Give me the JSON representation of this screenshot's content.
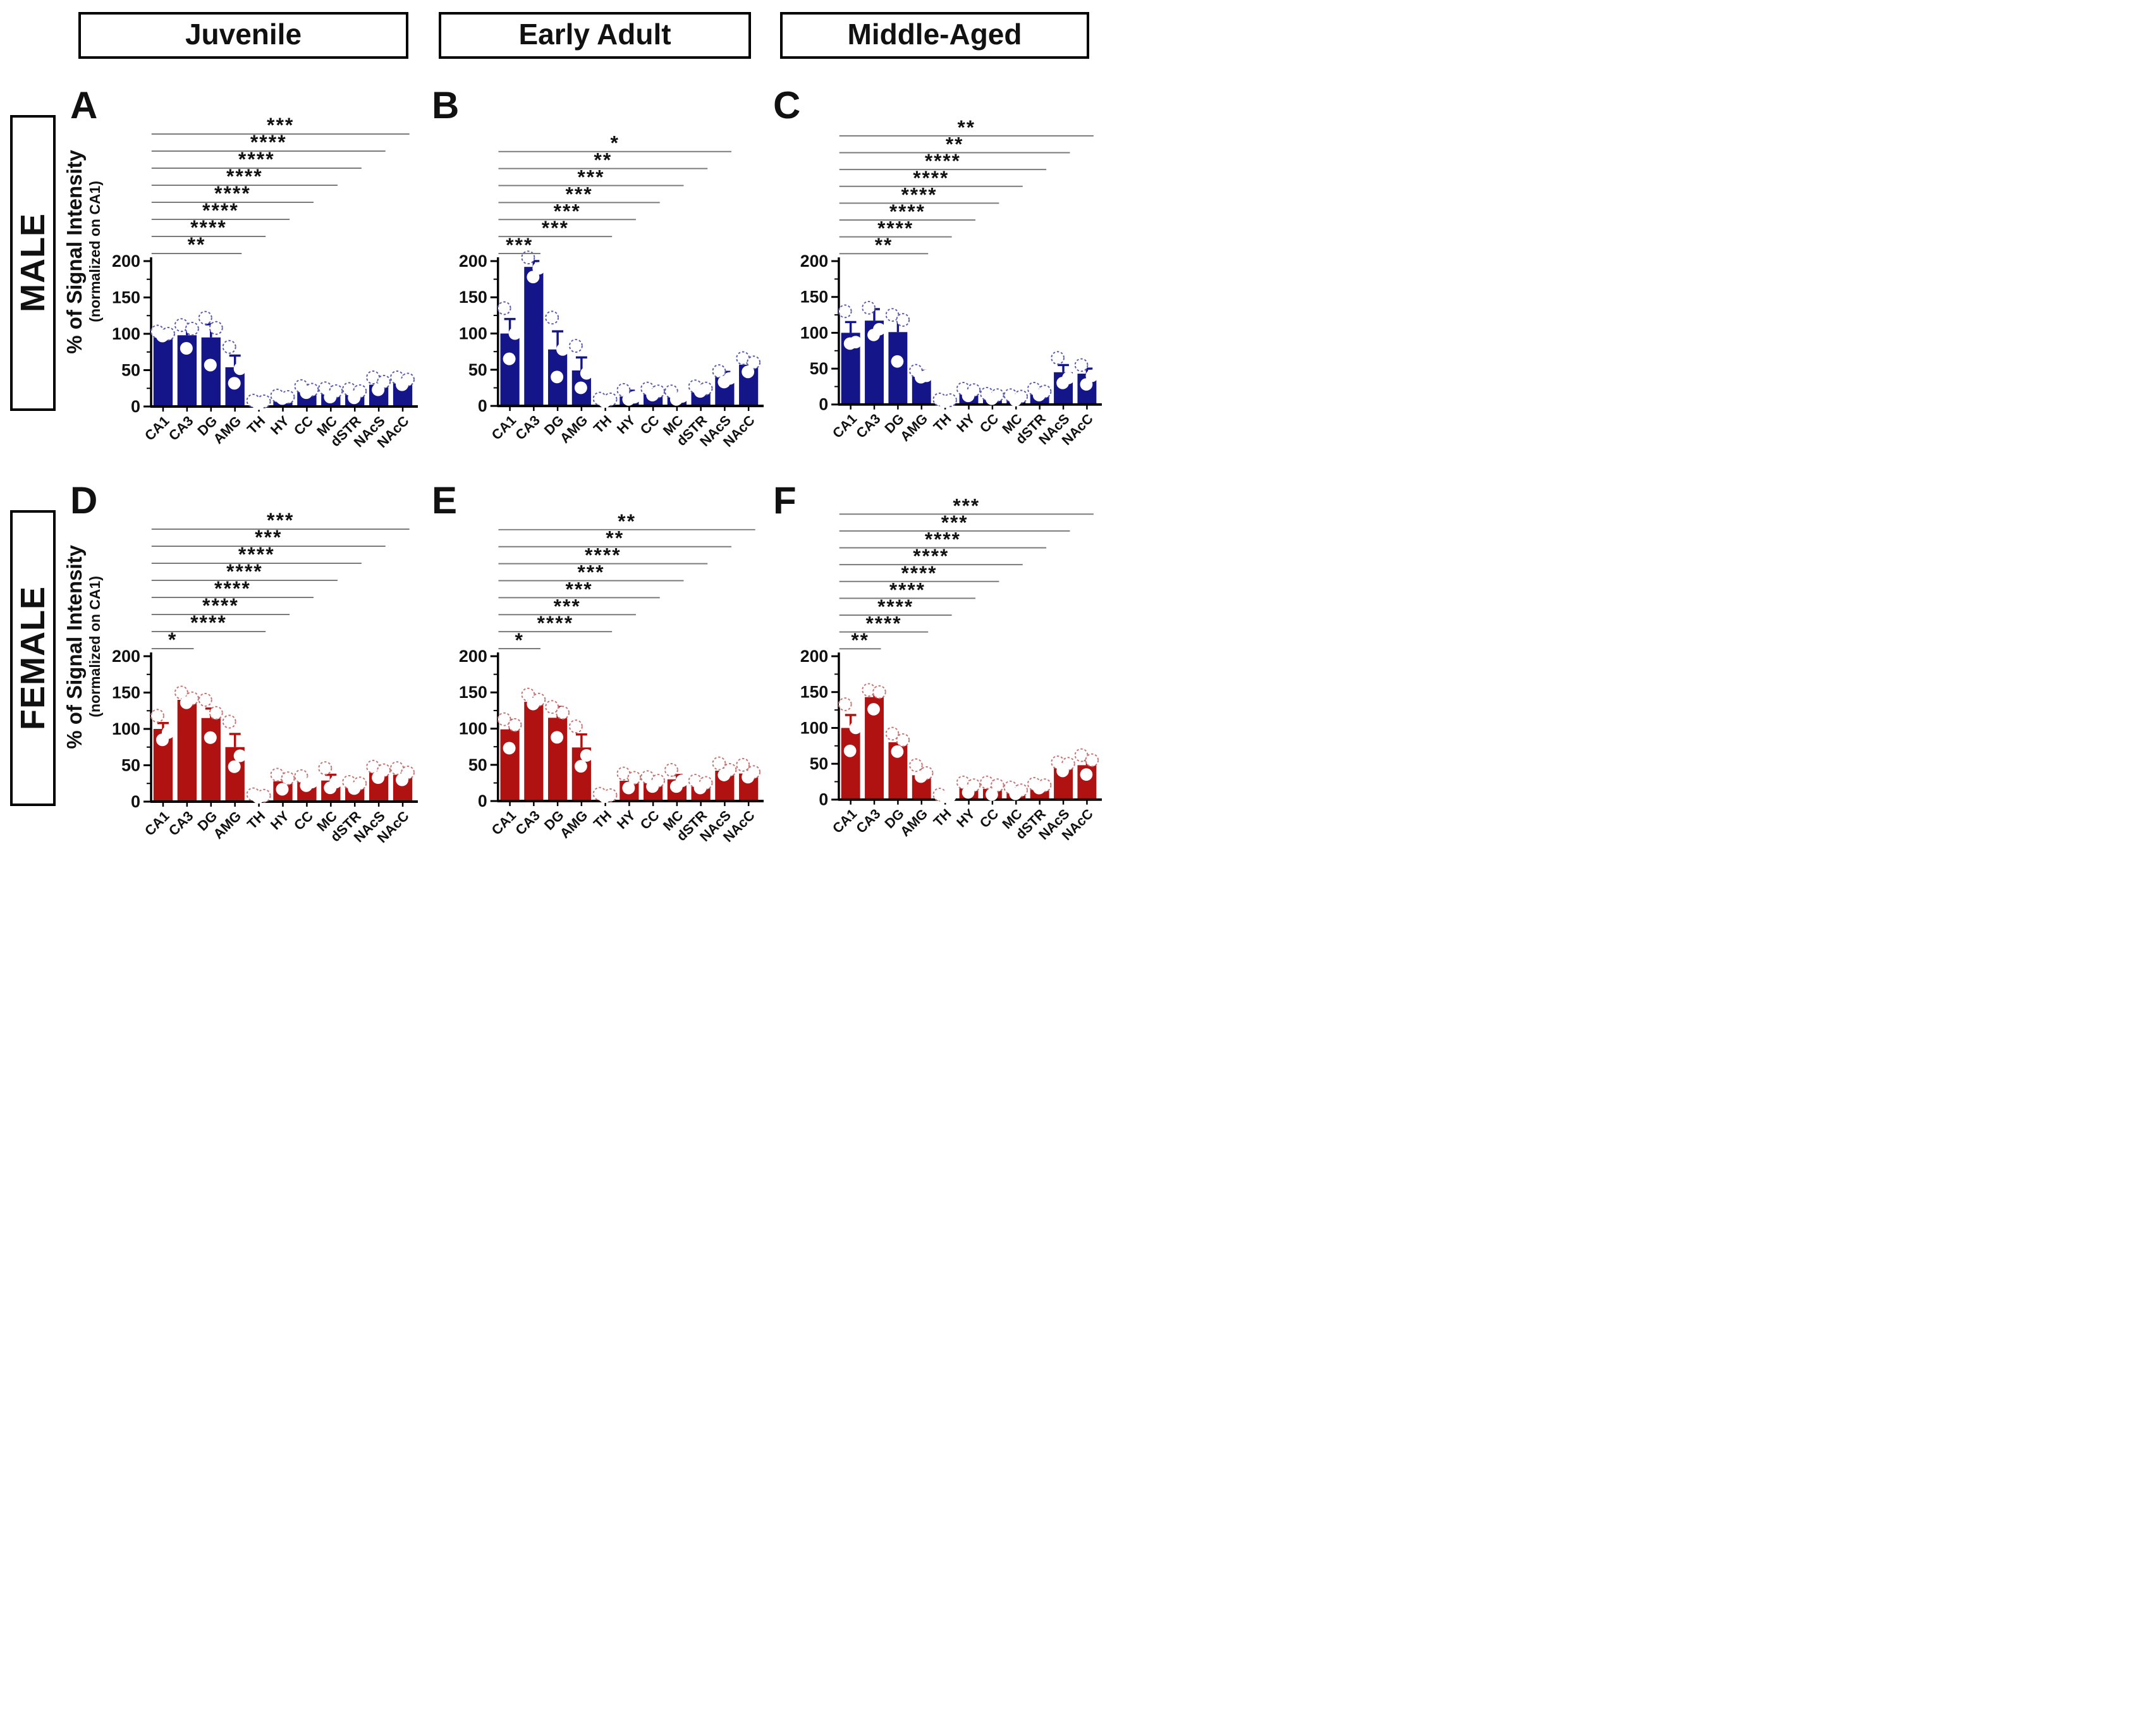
{
  "figure": {
    "col_headers": [
      "Juvenile",
      "Early Adult",
      "Middle-Aged"
    ],
    "row_headers": [
      "MALE",
      "FEMALE"
    ],
    "y_axis_title": "% of Signal Intensity",
    "y_axis_subtitle": "(normalized on CA1)",
    "colors": {
      "male": "#15158a",
      "female": "#b01111",
      "male_dot": "#5a5ab2",
      "female_dot": "#c87272",
      "bracket_line": "#7a7a7a",
      "axis": "#000000"
    }
  },
  "chart_data": [
    {
      "panel": "A",
      "sex": "MALE",
      "age": "Juvenile",
      "type": "bar",
      "categories": [
        "CA1",
        "CA3",
        "DG",
        "AMG",
        "TH",
        "HY",
        "CC",
        "MC",
        "dSTR",
        "NAcS",
        "NAcC"
      ],
      "values": [
        97,
        98,
        95,
        54,
        5,
        12,
        20,
        18,
        18,
        30,
        32
      ],
      "errors": [
        4,
        10,
        18,
        16,
        2,
        3,
        5,
        6,
        5,
        7,
        5
      ],
      "points": [
        [
          103,
          100,
          97
        ],
        [
          112,
          107,
          80
        ],
        [
          122,
          108,
          57
        ],
        [
          82,
          52,
          32
        ],
        [
          8,
          7,
          4
        ],
        [
          15,
          13,
          11
        ],
        [
          28,
          23,
          19
        ],
        [
          25,
          21,
          13
        ],
        [
          24,
          21,
          12
        ],
        [
          40,
          34,
          23
        ],
        [
          40,
          37,
          30
        ]
      ],
      "significance": [
        {
          "to": "AMG",
          "stars": "**"
        },
        {
          "to": "TH",
          "stars": "****"
        },
        {
          "to": "HY",
          "stars": "****"
        },
        {
          "to": "CC",
          "stars": "****"
        },
        {
          "to": "MC",
          "stars": "****"
        },
        {
          "to": "dSTR",
          "stars": "****"
        },
        {
          "to": "NAcS",
          "stars": "****"
        },
        {
          "to": "NAcC",
          "stars": "***"
        }
      ],
      "ylim": [
        0,
        200
      ],
      "yticks": [
        0,
        50,
        100,
        150,
        200
      ]
    },
    {
      "panel": "B",
      "sex": "MALE",
      "age": "Early Adult",
      "type": "bar",
      "categories": [
        "CA1",
        "CA3",
        "DG",
        "AMG",
        "TH",
        "HY",
        "CC",
        "MC",
        "dSTR",
        "NAcS",
        "NAcC"
      ],
      "values": [
        100,
        192,
        78,
        49,
        8,
        13,
        18,
        13,
        22,
        40,
        57
      ],
      "errors": [
        20,
        8,
        25,
        18,
        2,
        8,
        4,
        4,
        3,
        7,
        8
      ],
      "points": [
        [
          135,
          100,
          65
        ],
        [
          205,
          190,
          178
        ],
        [
          122,
          78,
          40
        ],
        [
          83,
          45,
          25
        ],
        [
          10,
          9,
          6
        ],
        [
          22,
          12,
          9
        ],
        [
          24,
          20,
          15
        ],
        [
          20,
          13,
          9
        ],
        [
          27,
          24,
          20
        ],
        [
          48,
          38,
          33
        ],
        [
          66,
          60,
          47
        ]
      ],
      "significance": [
        {
          "to": "CA3",
          "stars": "***"
        },
        {
          "to": "TH",
          "stars": "***"
        },
        {
          "to": "HY",
          "stars": "***"
        },
        {
          "to": "CC",
          "stars": "***"
        },
        {
          "to": "MC",
          "stars": "***"
        },
        {
          "to": "dSTR",
          "stars": "**"
        },
        {
          "to": "NAcS",
          "stars": "*"
        }
      ],
      "ylim": [
        0,
        200
      ],
      "yticks": [
        0,
        50,
        100,
        150,
        200
      ]
    },
    {
      "panel": "C",
      "sex": "MALE",
      "age": "Middle-Aged",
      "type": "bar",
      "categories": [
        "CA1",
        "CA3",
        "DG",
        "AMG",
        "TH",
        "HY",
        "CC",
        "MC",
        "dSTR",
        "NAcS",
        "NAcC"
      ],
      "values": [
        100,
        117,
        101,
        40,
        5,
        18,
        12,
        10,
        17,
        45,
        43
      ],
      "errors": [
        15,
        16,
        20,
        7,
        2,
        4,
        3,
        3,
        4,
        10,
        7
      ],
      "points": [
        [
          130,
          87,
          85
        ],
        [
          135,
          105,
          97
        ],
        [
          125,
          118,
          60
        ],
        [
          47,
          40,
          38
        ],
        [
          7,
          6,
          4
        ],
        [
          22,
          20,
          12
        ],
        [
          15,
          13,
          8
        ],
        [
          13,
          11,
          6
        ],
        [
          22,
          18,
          13
        ],
        [
          65,
          37,
          30
        ],
        [
          55,
          40,
          28
        ]
      ],
      "significance": [
        {
          "to": "AMG",
          "stars": "**"
        },
        {
          "to": "TH",
          "stars": "****"
        },
        {
          "to": "HY",
          "stars": "****"
        },
        {
          "to": "CC",
          "stars": "****"
        },
        {
          "to": "MC",
          "stars": "****"
        },
        {
          "to": "dSTR",
          "stars": "****"
        },
        {
          "to": "NAcS",
          "stars": "**"
        },
        {
          "to": "NAcC",
          "stars": "**"
        }
      ],
      "ylim": [
        0,
        200
      ],
      "yticks": [
        0,
        50,
        100,
        150,
        200
      ]
    },
    {
      "panel": "D",
      "sex": "FEMALE",
      "age": "Juvenile",
      "type": "bar",
      "categories": [
        "CA1",
        "CA3",
        "DG",
        "AMG",
        "TH",
        "HY",
        "CC",
        "MC",
        "dSTR",
        "NAcS",
        "NAcC"
      ],
      "values": [
        100,
        140,
        115,
        75,
        7,
        28,
        28,
        29,
        20,
        40,
        37
      ],
      "errors": [
        8,
        4,
        13,
        18,
        2,
        5,
        3,
        8,
        6,
        3,
        5
      ],
      "points": [
        [
          118,
          95,
          85
        ],
        [
          150,
          142,
          136
        ],
        [
          140,
          122,
          88
        ],
        [
          110,
          63,
          48
        ],
        [
          10,
          8,
          6
        ],
        [
          37,
          32,
          17
        ],
        [
          35,
          27,
          22
        ],
        [
          46,
          27,
          19
        ],
        [
          27,
          25,
          18
        ],
        [
          48,
          43,
          33
        ],
        [
          46,
          40,
          30
        ]
      ],
      "significance": [
        {
          "to": "CA3",
          "stars": "*"
        },
        {
          "to": "TH",
          "stars": "****"
        },
        {
          "to": "HY",
          "stars": "****"
        },
        {
          "to": "CC",
          "stars": "****"
        },
        {
          "to": "MC",
          "stars": "****"
        },
        {
          "to": "dSTR",
          "stars": "****"
        },
        {
          "to": "NAcS",
          "stars": "***"
        },
        {
          "to": "NAcC",
          "stars": "***"
        }
      ],
      "ylim": [
        0,
        200
      ],
      "yticks": [
        0,
        50,
        100,
        150,
        200
      ]
    },
    {
      "panel": "E",
      "sex": "FEMALE",
      "age": "Early Adult",
      "type": "bar",
      "categories": [
        "CA1",
        "CA3",
        "DG",
        "AMG",
        "TH",
        "HY",
        "CC",
        "MC",
        "dSTR",
        "NAcS",
        "NAcC"
      ],
      "values": [
        99,
        137,
        115,
        74,
        7,
        28,
        25,
        30,
        22,
        42,
        38
      ],
      "errors": [
        13,
        6,
        15,
        18,
        2,
        5,
        3,
        6,
        4,
        6,
        7
      ],
      "points": [
        [
          113,
          105,
          73
        ],
        [
          147,
          140,
          134
        ],
        [
          130,
          122,
          88
        ],
        [
          103,
          63,
          48
        ],
        [
          10,
          8,
          6
        ],
        [
          38,
          32,
          18
        ],
        [
          33,
          28,
          20
        ],
        [
          43,
          28,
          20
        ],
        [
          28,
          25,
          18
        ],
        [
          52,
          43,
          36
        ],
        [
          50,
          40,
          33
        ]
      ],
      "significance": [
        {
          "to": "CA3",
          "stars": "*"
        },
        {
          "to": "TH",
          "stars": "****"
        },
        {
          "to": "HY",
          "stars": "***"
        },
        {
          "to": "CC",
          "stars": "***"
        },
        {
          "to": "MC",
          "stars": "***"
        },
        {
          "to": "dSTR",
          "stars": "****"
        },
        {
          "to": "NAcS",
          "stars": "**"
        },
        {
          "to": "NAcC",
          "stars": "**"
        }
      ],
      "ylim": [
        0,
        200
      ],
      "yticks": [
        0,
        50,
        100,
        150,
        200
      ]
    },
    {
      "panel": "F",
      "sex": "FEMALE",
      "age": "Middle-Aged",
      "type": "bar",
      "categories": [
        "CA1",
        "CA3",
        "DG",
        "AMG",
        "TH",
        "HY",
        "CC",
        "MC",
        "dSTR",
        "NAcS",
        "NAcC"
      ],
      "values": [
        100,
        143,
        80,
        34,
        5,
        17,
        15,
        12,
        16,
        47,
        48
      ],
      "errors": [
        18,
        9,
        7,
        8,
        2,
        3,
        4,
        2,
        3,
        3,
        7
      ],
      "points": [
        [
          133,
          100,
          68
        ],
        [
          153,
          150,
          126
        ],
        [
          92,
          83,
          67
        ],
        [
          48,
          37,
          32
        ],
        [
          7,
          5,
          4
        ],
        [
          24,
          20,
          10
        ],
        [
          24,
          20,
          7
        ],
        [
          17,
          13,
          8
        ],
        [
          22,
          20,
          16
        ],
        [
          52,
          50,
          40
        ],
        [
          62,
          55,
          35
        ]
      ],
      "significance": [
        {
          "to": "CA3",
          "stars": "**"
        },
        {
          "to": "AMG",
          "stars": "****"
        },
        {
          "to": "TH",
          "stars": "****"
        },
        {
          "to": "HY",
          "stars": "****"
        },
        {
          "to": "CC",
          "stars": "****"
        },
        {
          "to": "MC",
          "stars": "****"
        },
        {
          "to": "dSTR",
          "stars": "****"
        },
        {
          "to": "NAcS",
          "stars": "***"
        },
        {
          "to": "NAcC",
          "stars": "***"
        }
      ],
      "ylim": [
        0,
        200
      ],
      "yticks": [
        0,
        50,
        100,
        150,
        200
      ]
    }
  ]
}
